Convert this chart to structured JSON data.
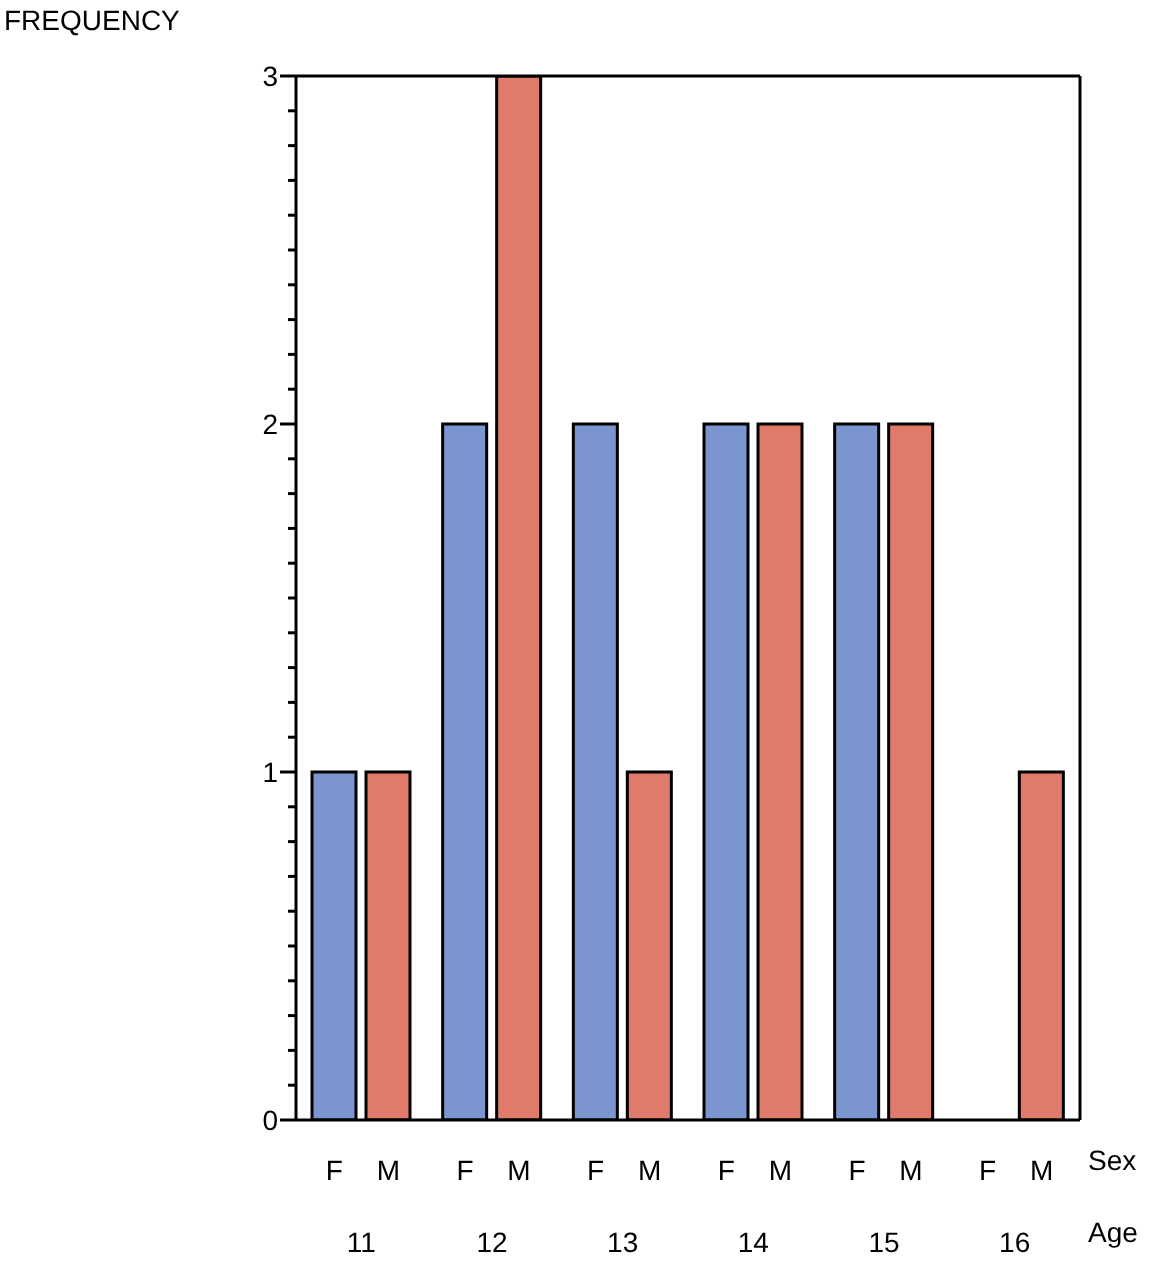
{
  "chart_data": {
    "type": "bar",
    "ylabel": "FREQUENCY",
    "xlabel": "Age",
    "legend_title": "Sex",
    "categories": [
      "11",
      "12",
      "13",
      "14",
      "15",
      "16"
    ],
    "series": [
      {
        "name": "F",
        "color": "#7b96cf",
        "values": [
          1,
          2,
          2,
          2,
          2,
          0
        ]
      },
      {
        "name": "M",
        "color": "#e07b6c",
        "values": [
          1,
          3,
          1,
          2,
          2,
          1
        ]
      }
    ],
    "ylim": [
      0,
      3
    ],
    "yticks": [
      0,
      {
        "value": 0.1,
        "label": null
      },
      {
        "value": 0.2,
        "label": null
      },
      {
        "value": 0.3,
        "label": null
      },
      {
        "value": 0.4,
        "label": null
      },
      {
        "value": 0.5,
        "label": null
      },
      {
        "value": 0.6,
        "label": null
      },
      {
        "value": 0.7,
        "label": null
      },
      {
        "value": 0.8,
        "label": null
      },
      {
        "value": 0.9,
        "label": null
      },
      1,
      {
        "value": 1.1,
        "label": null
      },
      {
        "value": 1.2,
        "label": null
      },
      {
        "value": 1.3,
        "label": null
      },
      {
        "value": 1.4,
        "label": null
      },
      {
        "value": 1.5,
        "label": null
      },
      {
        "value": 1.6,
        "label": null
      },
      {
        "value": 1.7,
        "label": null
      },
      {
        "value": 1.8,
        "label": null
      },
      {
        "value": 1.9,
        "label": null
      },
      2,
      {
        "value": 2.1,
        "label": null
      },
      {
        "value": 2.2,
        "label": null
      },
      {
        "value": 2.3,
        "label": null
      },
      {
        "value": 2.4,
        "label": null
      },
      {
        "value": 2.5,
        "label": null
      },
      {
        "value": 2.6,
        "label": null
      },
      {
        "value": 2.7,
        "label": null
      },
      {
        "value": 2.8,
        "label": null
      },
      {
        "value": 2.9,
        "label": null
      },
      3
    ],
    "grid": false
  }
}
